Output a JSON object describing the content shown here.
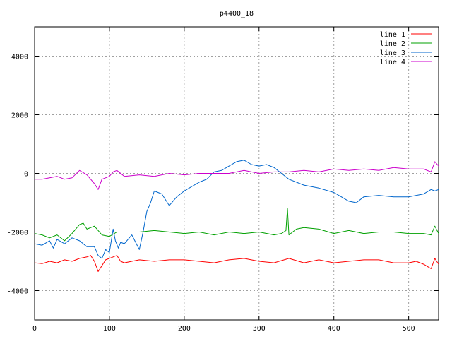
{
  "chart_data": {
    "type": "line",
    "title": "p4400_18",
    "xlabel": "",
    "ylabel": "",
    "xlim": [
      0,
      540
    ],
    "ylim": [
      -5000,
      5000
    ],
    "x_ticks": [
      0,
      100,
      200,
      300,
      400,
      500
    ],
    "y_ticks": [
      -4000,
      -2000,
      0,
      2000,
      4000
    ],
    "grid": true,
    "legend_position": "top-right",
    "series": [
      {
        "name": "line 1",
        "color": "#ff0000",
        "x": [
          0,
          10,
          20,
          30,
          40,
          50,
          60,
          70,
          75,
          80,
          85,
          90,
          95,
          100,
          105,
          110,
          115,
          120,
          140,
          160,
          180,
          200,
          220,
          240,
          260,
          280,
          300,
          320,
          340,
          360,
          380,
          400,
          420,
          440,
          460,
          480,
          500,
          510,
          520,
          530,
          535,
          540
        ],
        "y": [
          -3050,
          -3080,
          -3000,
          -3050,
          -2950,
          -3000,
          -2900,
          -2850,
          -2800,
          -3000,
          -3350,
          -3150,
          -2950,
          -2900,
          -2850,
          -2800,
          -3000,
          -3050,
          -2950,
          -3000,
          -2950,
          -2950,
          -3000,
          -3050,
          -2950,
          -2900,
          -3000,
          -3050,
          -2900,
          -3050,
          -2950,
          -3050,
          -3000,
          -2950,
          -2950,
          -3050,
          -3050,
          -3000,
          -3100,
          -3250,
          -2900,
          -3100
        ]
      },
      {
        "name": "line 2",
        "color": "#00a000",
        "x": [
          0,
          10,
          20,
          30,
          40,
          50,
          60,
          65,
          70,
          80,
          90,
          100,
          110,
          120,
          140,
          160,
          180,
          200,
          220,
          240,
          260,
          280,
          300,
          320,
          330,
          336,
          338,
          340,
          350,
          360,
          380,
          400,
          420,
          440,
          460,
          480,
          500,
          520,
          530,
          535,
          540
        ],
        "y": [
          -2050,
          -2100,
          -2200,
          -2100,
          -2300,
          -2050,
          -1750,
          -1700,
          -1900,
          -1800,
          -2100,
          -2150,
          -2000,
          -2000,
          -2000,
          -1950,
          -2000,
          -2050,
          -2000,
          -2100,
          -2000,
          -2050,
          -2000,
          -2100,
          -2050,
          -1950,
          -1200,
          -2100,
          -1900,
          -1850,
          -1900,
          -2050,
          -1950,
          -2050,
          -2000,
          -2000,
          -2050,
          -2050,
          -2100,
          -1800,
          -2050
        ]
      },
      {
        "name": "line 3",
        "color": "#0066cc",
        "x": [
          0,
          10,
          20,
          25,
          30,
          40,
          50,
          60,
          70,
          80,
          85,
          90,
          95,
          100,
          105,
          108,
          112,
          115,
          120,
          130,
          140,
          145,
          150,
          155,
          160,
          170,
          180,
          190,
          200,
          210,
          220,
          230,
          240,
          250,
          260,
          270,
          280,
          290,
          300,
          310,
          320,
          330,
          340,
          360,
          380,
          400,
          410,
          420,
          430,
          440,
          460,
          480,
          500,
          520,
          530,
          535,
          540
        ],
        "y": [
          -2400,
          -2450,
          -2300,
          -2550,
          -2250,
          -2400,
          -2200,
          -2300,
          -2500,
          -2500,
          -2800,
          -2900,
          -2600,
          -2700,
          -1900,
          -2300,
          -2550,
          -2350,
          -2400,
          -2100,
          -2600,
          -2000,
          -1300,
          -1000,
          -600,
          -700,
          -1100,
          -800,
          -600,
          -450,
          -300,
          -200,
          50,
          100,
          250,
          400,
          450,
          300,
          250,
          300,
          200,
          0,
          -200,
          -400,
          -500,
          -650,
          -800,
          -950,
          -1000,
          -800,
          -750,
          -800,
          -800,
          -700,
          -550,
          -600,
          -550
        ]
      },
      {
        "name": "line 4",
        "color": "#cc00cc",
        "x": [
          0,
          10,
          20,
          30,
          40,
          50,
          60,
          70,
          80,
          85,
          90,
          100,
          105,
          110,
          120,
          140,
          160,
          180,
          200,
          220,
          240,
          260,
          280,
          300,
          320,
          340,
          360,
          380,
          400,
          420,
          440,
          460,
          480,
          500,
          520,
          530,
          535,
          540
        ],
        "y": [
          -200,
          -200,
          -150,
          -100,
          -200,
          -150,
          100,
          -50,
          -350,
          -550,
          -200,
          -100,
          50,
          100,
          -100,
          -50,
          -100,
          0,
          -50,
          0,
          0,
          0,
          100,
          0,
          50,
          50,
          100,
          50,
          150,
          100,
          150,
          100,
          200,
          150,
          150,
          50,
          400,
          250
        ]
      }
    ]
  }
}
